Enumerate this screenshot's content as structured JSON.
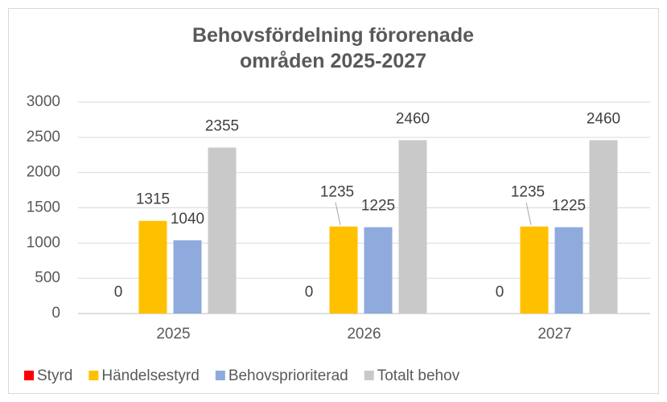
{
  "chart_data": {
    "type": "bar",
    "title": "Behovsfördelning förorenade områden 2025-2027",
    "categories": [
      "2025",
      "2026",
      "2027"
    ],
    "series": [
      {
        "name": "Styrd",
        "color": "#ff0000",
        "values": [
          0,
          0,
          0
        ]
      },
      {
        "name": "Händelsestyrd",
        "color": "#ffc000",
        "values": [
          1315,
          1235,
          1235
        ]
      },
      {
        "name": "Behovsprioriterad",
        "color": "#8faadc",
        "values": [
          1040,
          1225,
          1225
        ]
      },
      {
        "name": "Totalt behov",
        "color": "#c9c9c9",
        "values": [
          2355,
          2460,
          2460
        ]
      }
    ],
    "ylim": [
      0,
      3000
    ],
    "yticks": [
      0,
      500,
      1000,
      1500,
      2000,
      2500,
      3000
    ],
    "grid": true,
    "legend": "bottom"
  }
}
